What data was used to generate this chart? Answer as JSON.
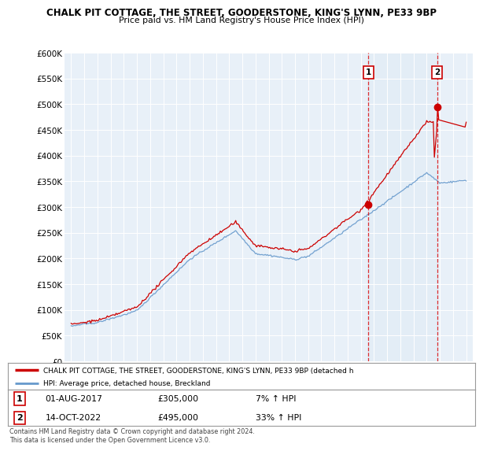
{
  "title1": "CHALK PIT COTTAGE, THE STREET, GOODERSTONE, KING'S LYNN, PE33 9BP",
  "title2": "Price paid vs. HM Land Registry's House Price Index (HPI)",
  "ylabel_ticks": [
    "£0",
    "£50K",
    "£100K",
    "£150K",
    "£200K",
    "£250K",
    "£300K",
    "£350K",
    "£400K",
    "£450K",
    "£500K",
    "£550K",
    "£600K"
  ],
  "ytick_values": [
    0,
    50000,
    100000,
    150000,
    200000,
    250000,
    300000,
    350000,
    400000,
    450000,
    500000,
    550000,
    600000
  ],
  "xlim_start": 1994.5,
  "xlim_end": 2025.5,
  "ylim_min": 0,
  "ylim_max": 600000,
  "sale1_date": 2017.58,
  "sale1_price": 305000,
  "sale1_label": "1",
  "sale1_text": "01-AUG-2017",
  "sale1_amount": "£305,000",
  "sale1_pct": "7% ↑ HPI",
  "sale2_date": 2022.79,
  "sale2_price": 495000,
  "sale2_label": "2",
  "sale2_text": "14-OCT-2022",
  "sale2_amount": "£495,000",
  "sale2_pct": "33% ↑ HPI",
  "legend_line1": "CHALK PIT COTTAGE, THE STREET, GOODERSTONE, KING'S LYNN, PE33 9BP (detached h",
  "legend_line2": "HPI: Average price, detached house, Breckland",
  "footer": "Contains HM Land Registry data © Crown copyright and database right 2024.\nThis data is licensed under the Open Government Licence v3.0.",
  "line_color_red": "#cc0000",
  "line_color_blue": "#6699cc",
  "shade_color": "#dce9f5",
  "background_color": "#e8f0f8",
  "plot_bg": "#ffffff"
}
